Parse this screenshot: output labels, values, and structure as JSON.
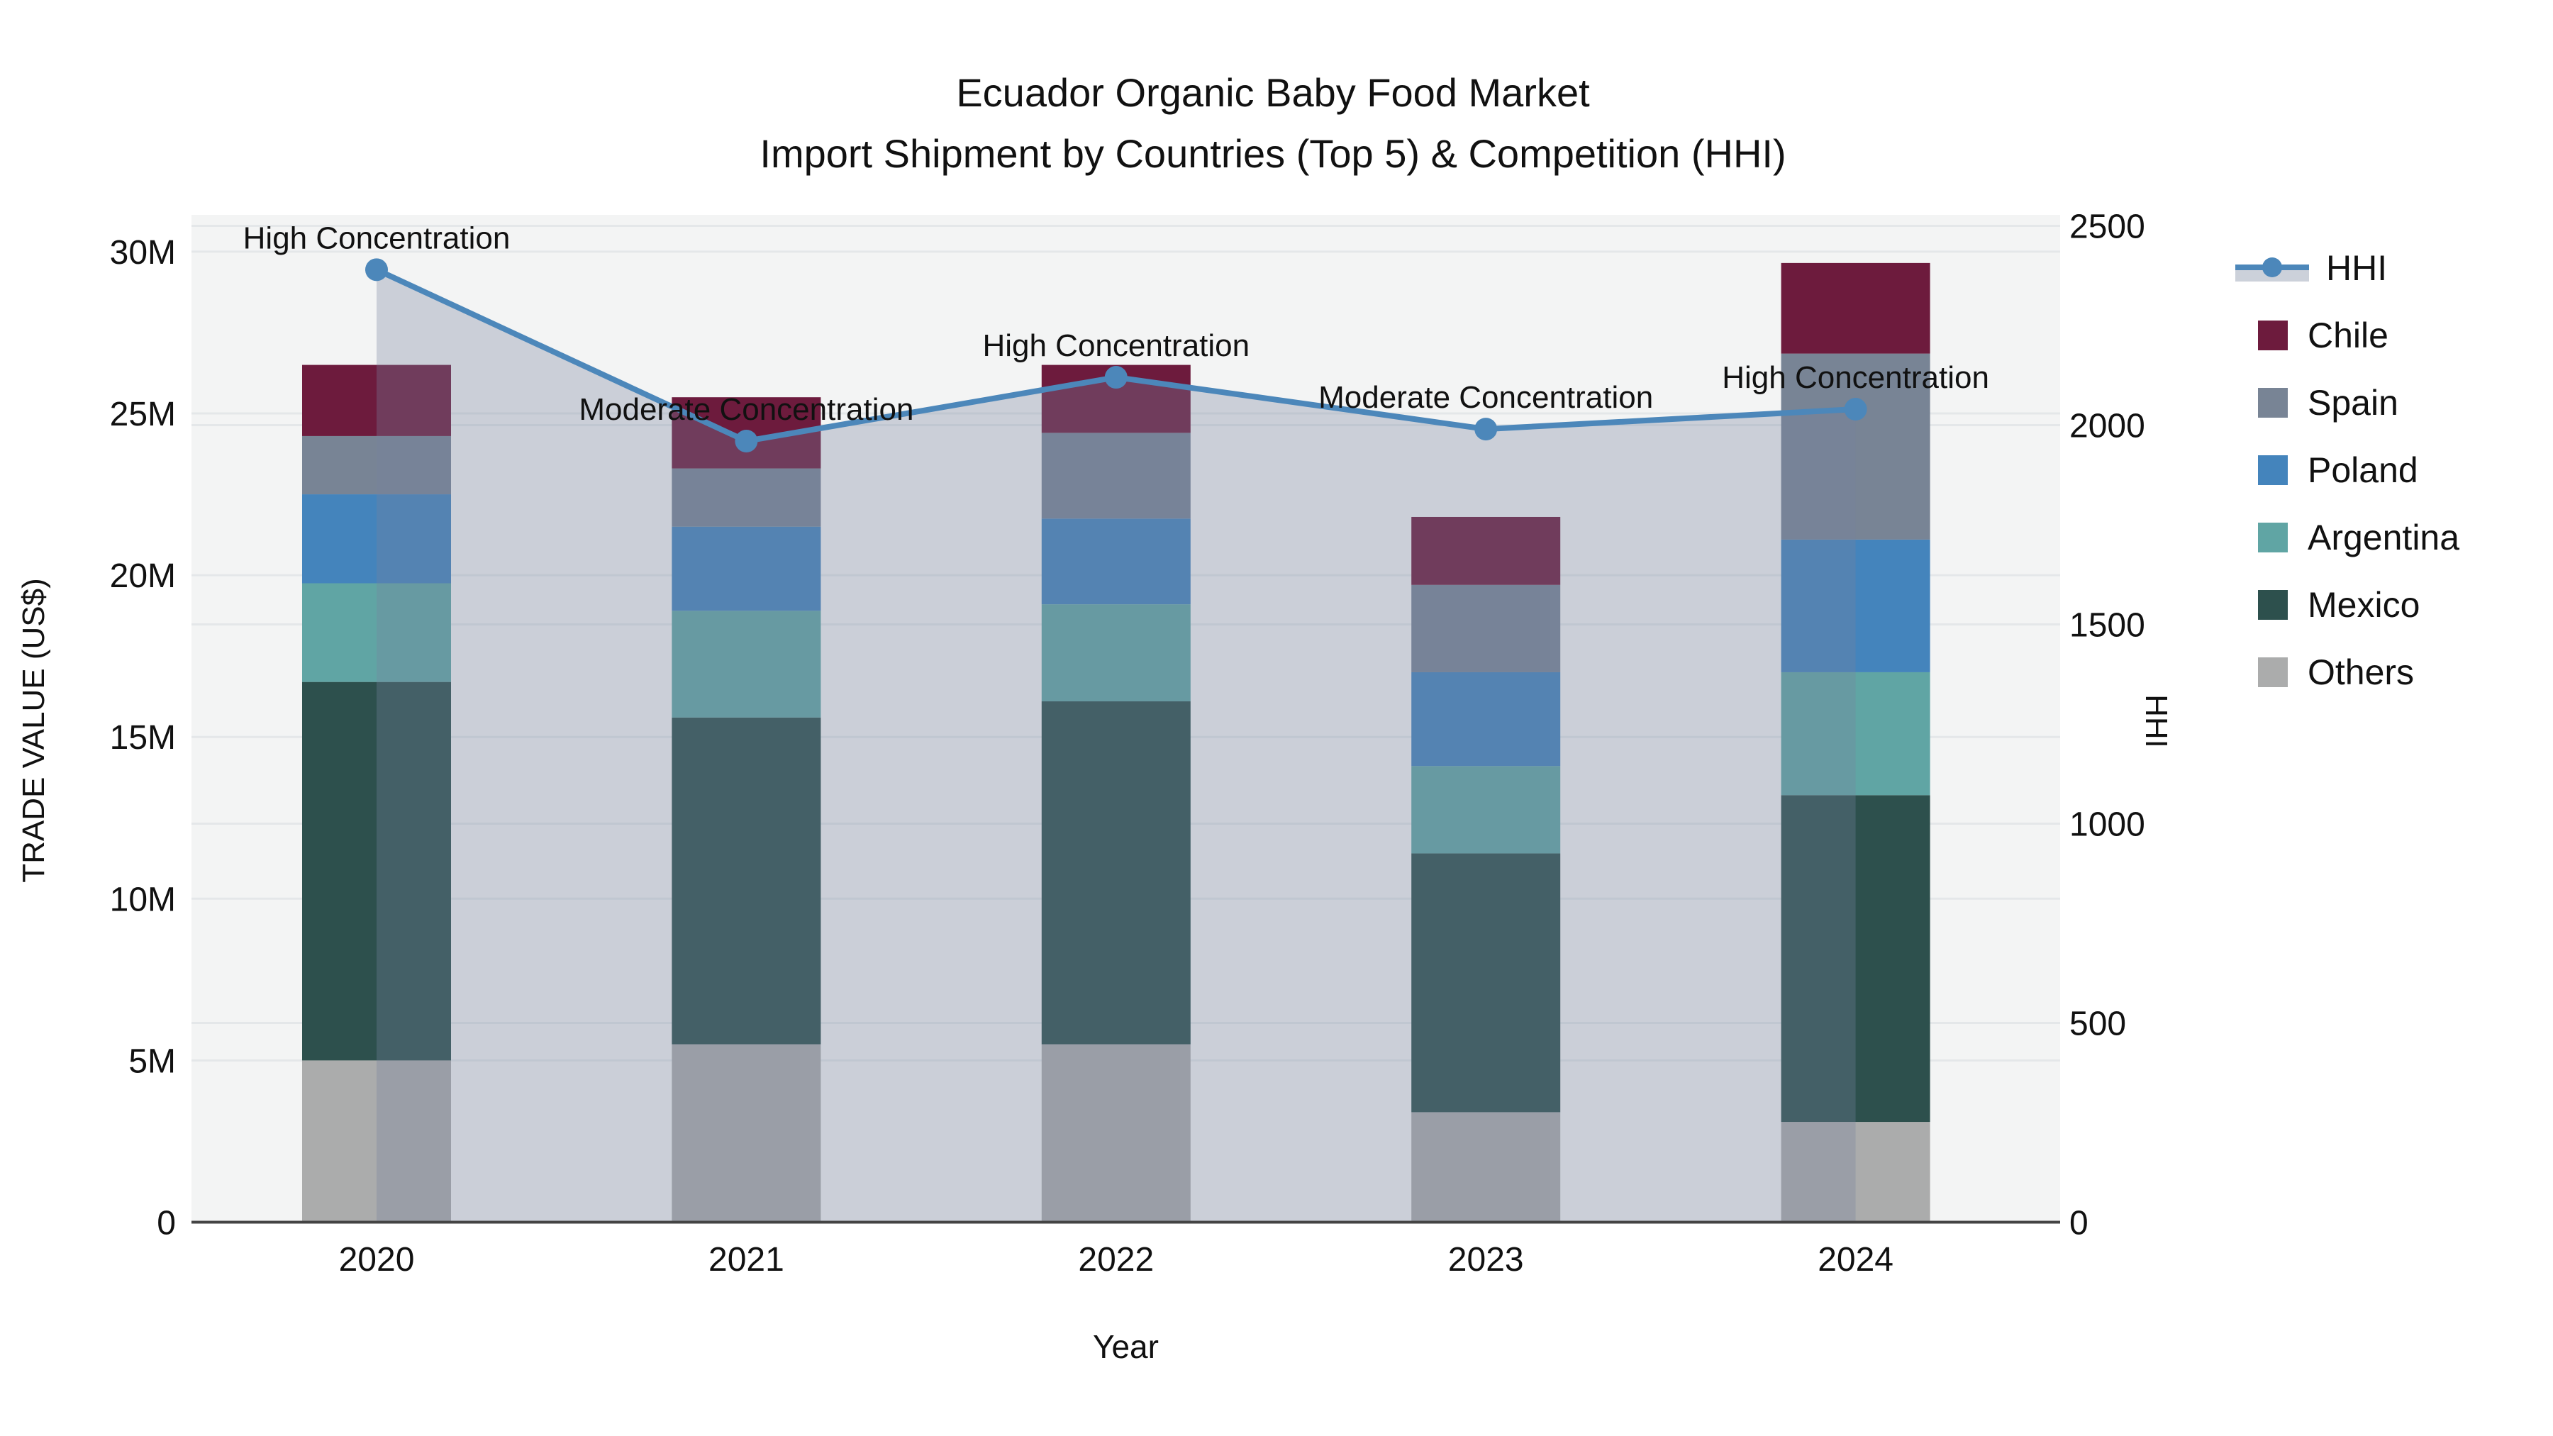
{
  "title": {
    "line1": "Ecuador Organic Baby Food Market",
    "line2": "Import Shipment by Countries (Top 5) & Competition (HHI)"
  },
  "axes": {
    "x_title": "Year",
    "y_left_title": "TRADE VALUE (US$)",
    "y_right_title": "HHI",
    "y_left_ticks": [
      "0",
      "5M",
      "10M",
      "15M",
      "20M",
      "25M",
      "30M"
    ],
    "y_right_ticks": [
      "0",
      "500",
      "1000",
      "1500",
      "2000",
      "2500"
    ]
  },
  "chart_data": {
    "type": "bar",
    "subtype": "stacked-bars-with-line",
    "categories": [
      "2020",
      "2021",
      "2022",
      "2023",
      "2024"
    ],
    "value_unit": "millions US$",
    "series": [
      {
        "name": "Others",
        "color": "#abacac",
        "values": [
          5.0,
          5.5,
          5.5,
          3.4,
          3.1
        ]
      },
      {
        "name": "Mexico",
        "color": "#2d504d",
        "values": [
          11.7,
          10.1,
          10.6,
          8.0,
          10.1
        ]
      },
      {
        "name": "Argentina",
        "color": "#60a5a4",
        "values": [
          3.05,
          3.3,
          3.0,
          2.7,
          3.8
        ]
      },
      {
        "name": "Poland",
        "color": "#4484bc",
        "values": [
          2.75,
          2.6,
          2.65,
          2.9,
          4.1
        ]
      },
      {
        "name": "Spain",
        "color": "#788495",
        "values": [
          1.8,
          1.8,
          2.65,
          2.7,
          5.75
        ]
      },
      {
        "name": "Chile",
        "color": "#6d1b3d",
        "values": [
          2.2,
          2.2,
          2.1,
          2.1,
          2.8
        ]
      }
    ],
    "bar_totals": [
      26.5,
      25.5,
      26.5,
      21.8,
      29.65
    ],
    "line_series": {
      "name": "HHI",
      "color": "#4c87ba",
      "area_fill": "rgba(118,130,160,0.32)",
      "values": [
        2390,
        1960,
        2120,
        1990,
        2040
      ]
    },
    "annotations": [
      "High Concentration",
      "Moderate Concentration",
      "High Concentration",
      "Moderate Concentration",
      "High Concentration"
    ],
    "title": "Ecuador Organic Baby Food Market — Import Shipment by Countries (Top 5) & Competition (HHI)",
    "xlabel": "Year",
    "ylabel_left": "TRADE VALUE (US$)",
    "ylabel_right": "HHI",
    "ylim_left_M": [
      0,
      30
    ],
    "ylim_right": [
      0,
      2500
    ],
    "grid": true,
    "legend_position": "right"
  },
  "legend": {
    "items": [
      {
        "label": "HHI",
        "kind": "line",
        "color": "#4c87ba"
      },
      {
        "label": "Chile",
        "kind": "square",
        "color": "#6d1b3d"
      },
      {
        "label": "Spain",
        "kind": "square",
        "color": "#788495"
      },
      {
        "label": "Poland",
        "kind": "square",
        "color": "#4484bc"
      },
      {
        "label": "Argentina",
        "kind": "square",
        "color": "#60a5a4"
      },
      {
        "label": "Mexico",
        "kind": "square",
        "color": "#2d504d"
      },
      {
        "label": "Others",
        "kind": "square",
        "color": "#abacac"
      }
    ]
  },
  "style": {
    "plot_bg": "#f3f4f4",
    "grid_color": "#e4e7e9",
    "axis_line_color": "#444444",
    "text_color": "#111111"
  }
}
